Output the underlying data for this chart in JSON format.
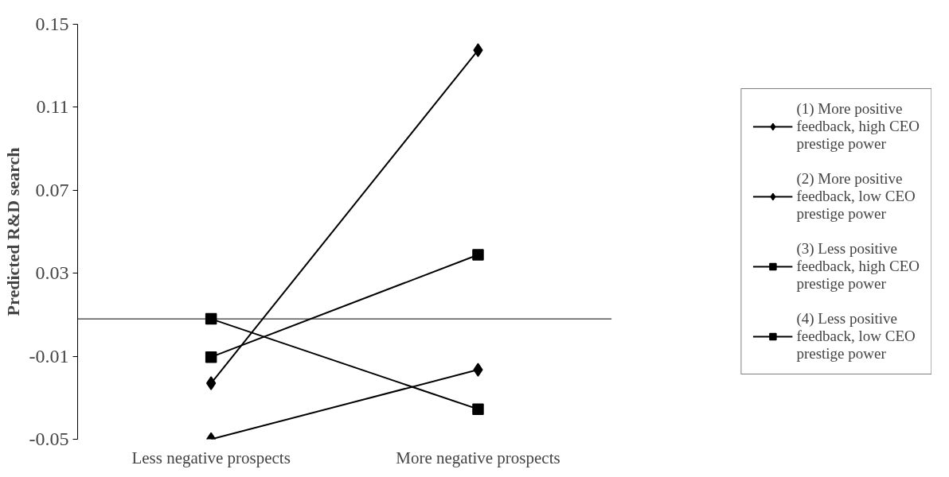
{
  "chart_data": {
    "type": "line",
    "ylabel": "Predicted R&D search",
    "categories": [
      "Less negative prospects",
      "More negative prospects"
    ],
    "series": [
      {
        "name": "(1) More positive feedback, high CEO prestige power",
        "color": "#000000",
        "marker": "diamond",
        "values": [
          -0.023,
          0.1375
        ]
      },
      {
        "name": "(2) More positive feedback, low CEO prestige power",
        "color": "#000000",
        "marker": "diamond",
        "values": [
          -0.05,
          -0.0165
        ]
      },
      {
        "name": "(3) Less positive feedback, high CEO prestige power",
        "color": "#000000",
        "marker": "square",
        "values": [
          0.008,
          -0.0355
        ]
      },
      {
        "name": "(4) Less positive feedback, low CEO prestige power",
        "color": "#000000",
        "marker": "square",
        "values": [
          -0.0104,
          0.0389
        ]
      }
    ],
    "ylim": [
      -0.05,
      0.15
    ],
    "yticks": [
      -0.05,
      -0.01,
      0.03,
      0.07,
      0.11,
      0.15
    ],
    "ref_lines": [
      {
        "axis": "y",
        "value": 0.008,
        "label": null
      }
    ],
    "grid": false,
    "legend": "right",
    "line_style": "solid"
  }
}
